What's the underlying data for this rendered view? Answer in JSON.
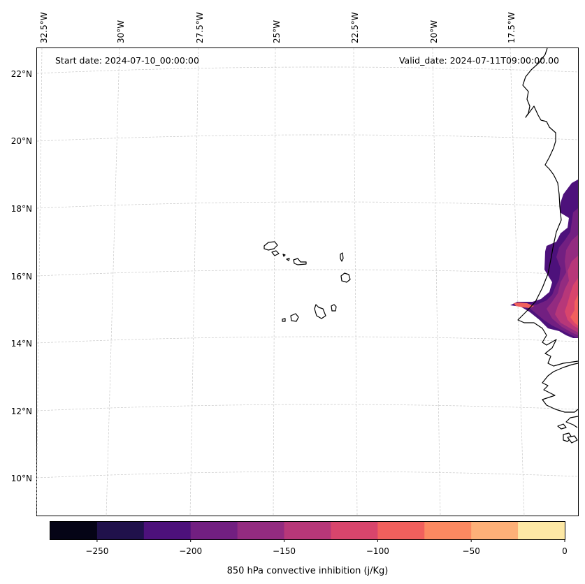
{
  "map": {
    "start_label": "Start date: 2024-07-10_00:00:00",
    "valid_label": "Valid_date: 2024-07-11T09:00:00.00",
    "lon_labels": [
      "32.5°W",
      "30°W",
      "27.5°W",
      "25°W",
      "22.5°W",
      "20°W",
      "17.5°W"
    ],
    "lat_labels": [
      "22°N",
      "20°N",
      "18°N",
      "16°N",
      "14°N",
      "12°N",
      "10°N"
    ],
    "features": [
      "Cape Verde islands",
      "West African coastline (Mauritania, Senegal, Gambia, Guinea-Bissau)"
    ]
  },
  "colorbar": {
    "title": "850 hPa convective inhibition (j/Kg)",
    "ticks": [
      "−250",
      "−200",
      "−150",
      "−100",
      "−50",
      "0"
    ],
    "range": [
      -275,
      0
    ],
    "levels": [
      -275,
      -250,
      -225,
      -200,
      -175,
      -150,
      -125,
      -100,
      -75,
      -50,
      -25,
      0
    ],
    "colors": [
      "#050416",
      "#20114b",
      "#4d117b",
      "#721f81",
      "#932b80",
      "#b73779",
      "#d8456c",
      "#f1605d",
      "#fc8961",
      "#feb078",
      "#fde8a5"
    ]
  },
  "field_colors": {
    "dark": "#4d117b",
    "medium": "#721f81",
    "magenta": "#932b80",
    "pink": "#b73779",
    "rose": "#d8456c",
    "coral": "#f1605d"
  }
}
